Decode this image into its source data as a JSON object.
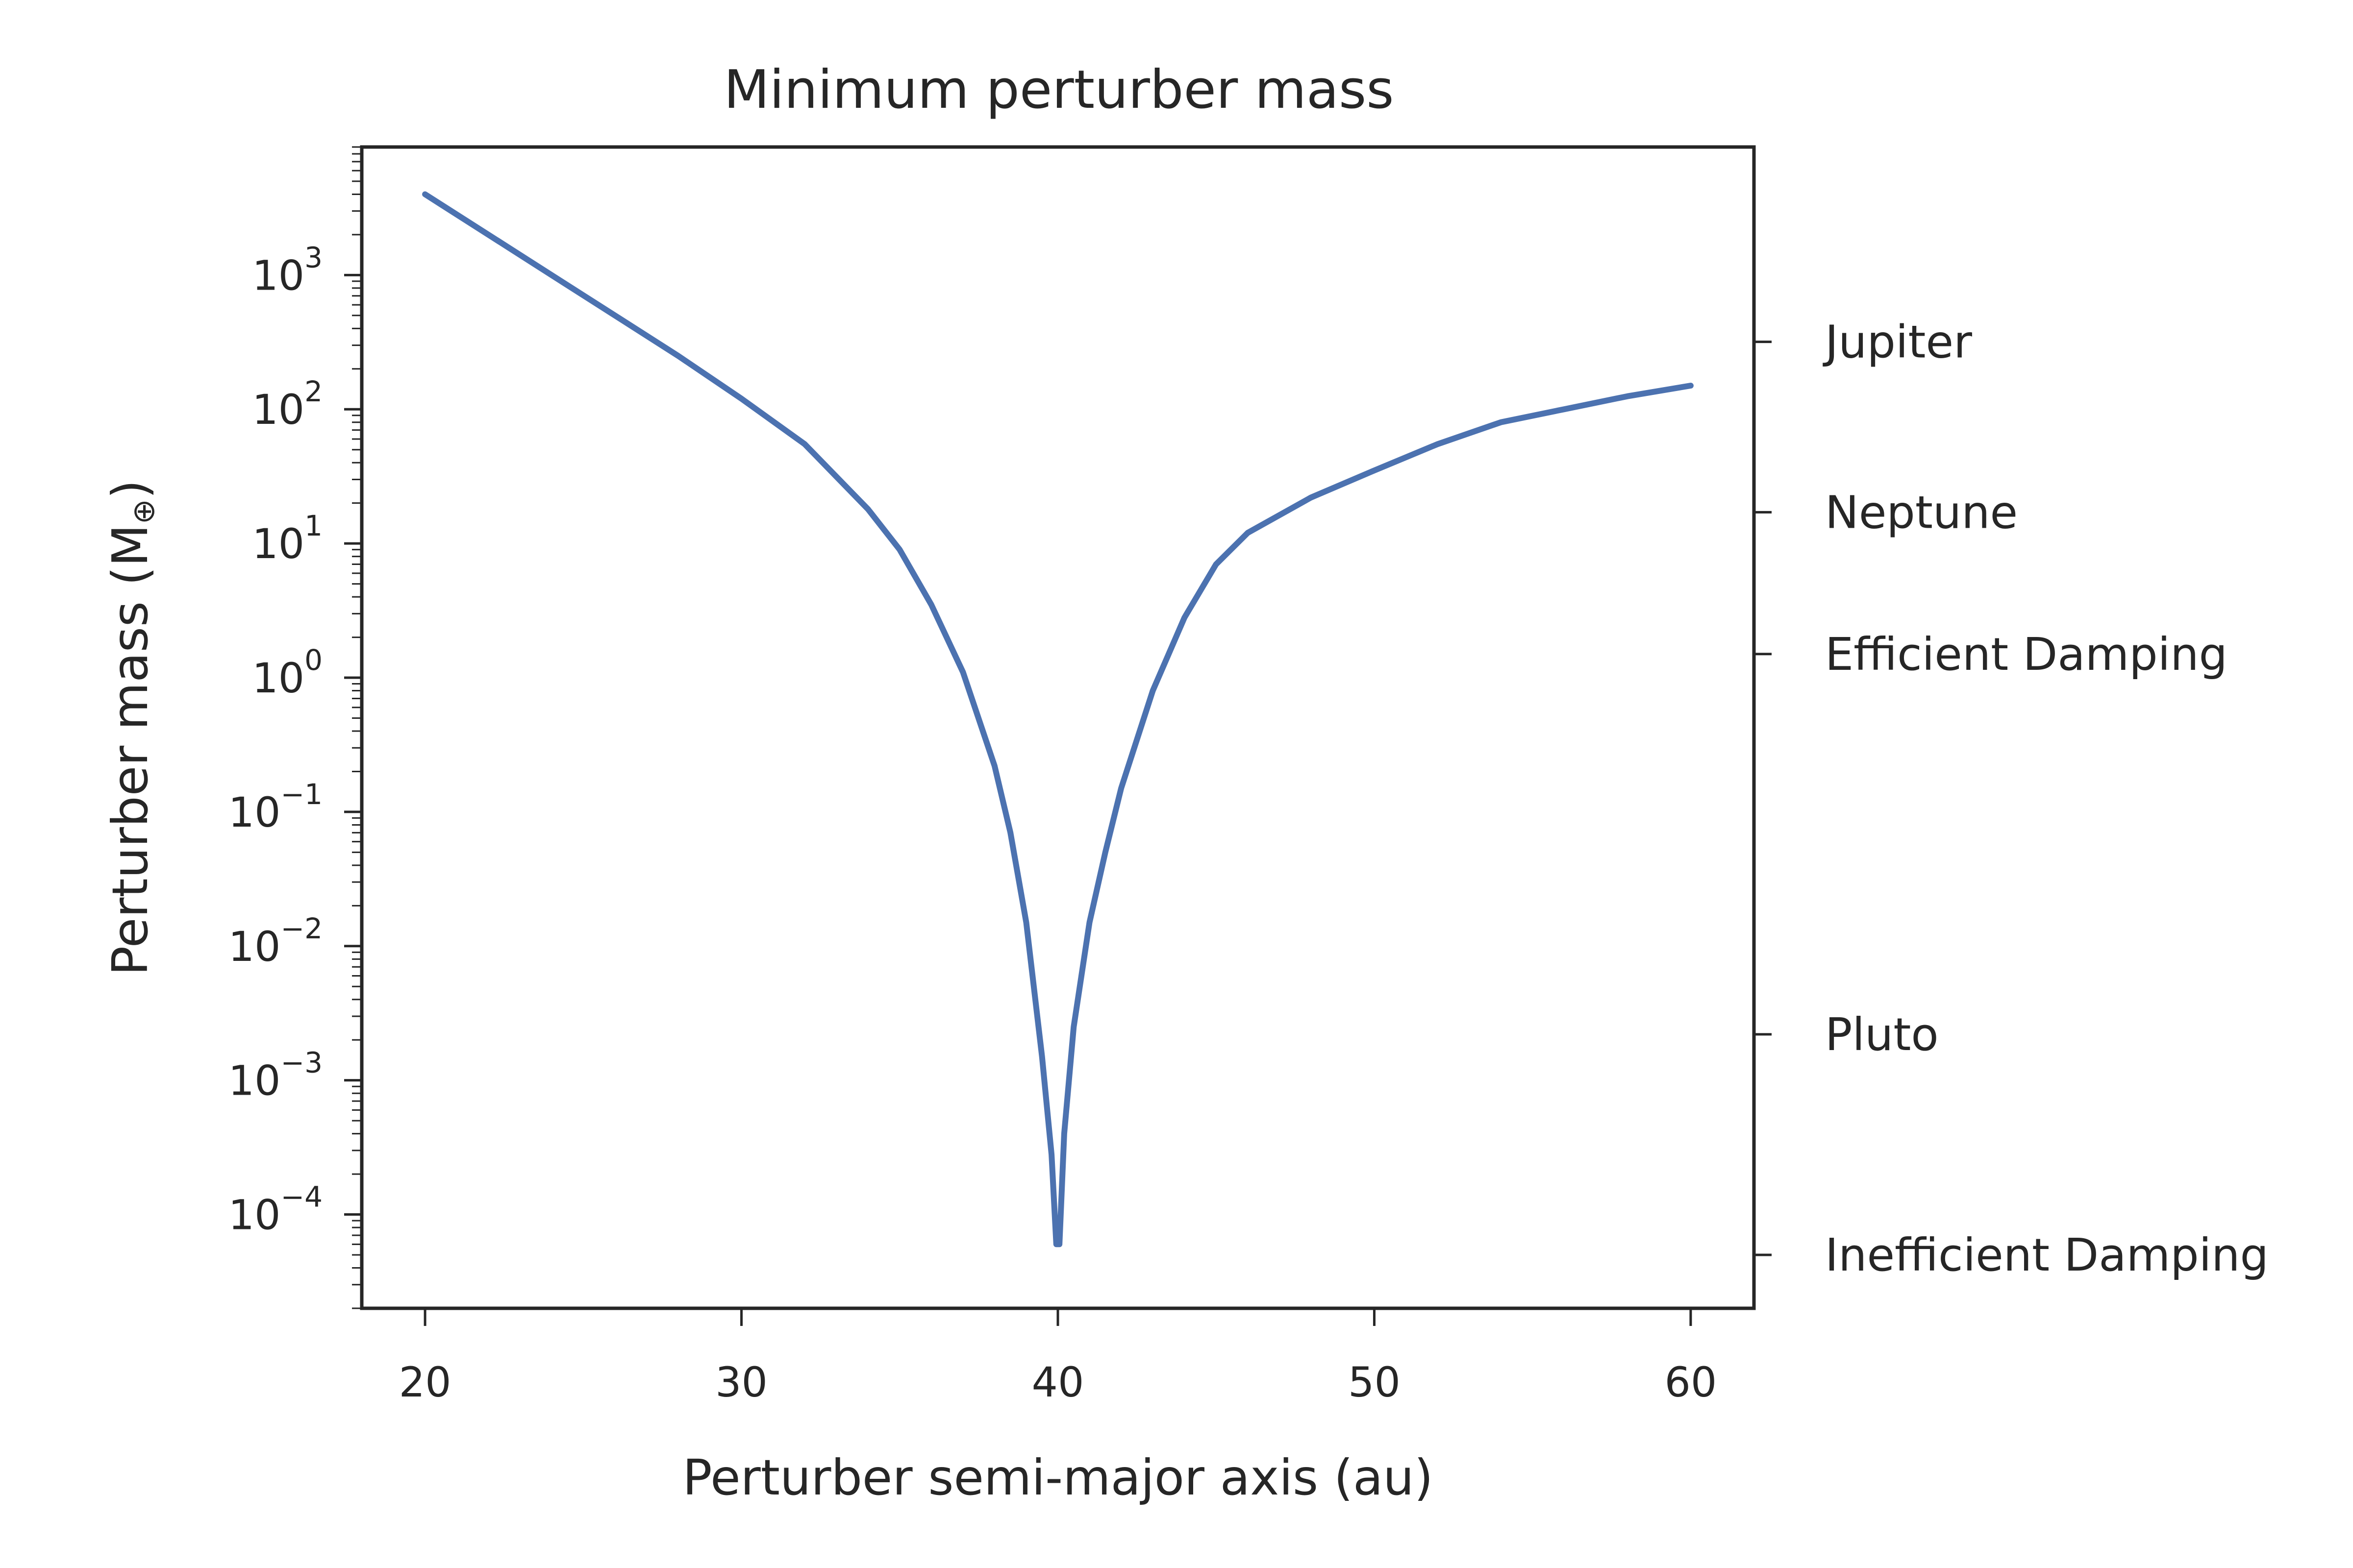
{
  "colors": {
    "series": "#4c72b0",
    "axis": "#262626"
  },
  "chart_data": {
    "type": "line",
    "title": "Minimum perturber mass",
    "xlabel": "Perturber semi-major axis (au)",
    "ylabel": "Perturber mass (M",
    "ylabel_symbol": "⊕",
    "ylabel_close": ")",
    "x_scale": "linear",
    "y_scale": "log",
    "xlim": [
      18,
      62
    ],
    "ylim": [
      2e-05,
      9000
    ],
    "x_ticks": [
      {
        "value": 20,
        "label": "20"
      },
      {
        "value": 30,
        "label": "30"
      },
      {
        "value": 40,
        "label": "40"
      },
      {
        "value": 50,
        "label": "50"
      },
      {
        "value": 60,
        "label": "60"
      }
    ],
    "y_ticks": [
      {
        "value": 0.0001,
        "base": "10",
        "exp": "−4"
      },
      {
        "value": 0.001,
        "base": "10",
        "exp": "−3"
      },
      {
        "value": 0.01,
        "base": "10",
        "exp": "−2"
      },
      {
        "value": 0.1,
        "base": "10",
        "exp": "−1"
      },
      {
        "value": 1,
        "base": "10",
        "exp": "0"
      },
      {
        "value": 10,
        "base": "10",
        "exp": "1"
      },
      {
        "value": 100,
        "base": "10",
        "exp": "2"
      },
      {
        "value": 1000,
        "base": "10",
        "exp": "3"
      }
    ],
    "right_ticks": [
      {
        "value": 318,
        "label": "Jupiter"
      },
      {
        "value": 17.1,
        "label": "Neptune"
      },
      {
        "value": 1.5,
        "label": "Efficient Damping"
      },
      {
        "value": 0.0022,
        "label": "Pluto"
      },
      {
        "value": 5e-05,
        "label": "Inefficient Damping"
      }
    ],
    "series": [
      {
        "x": [
          20,
          22,
          24,
          26,
          28,
          30,
          32,
          34,
          35,
          36,
          37,
          38,
          38.5,
          39,
          39.5,
          39.8,
          39.95,
          40.05,
          40.2,
          40.5,
          41,
          41.5,
          42,
          43,
          44,
          45,
          46,
          48,
          50,
          52,
          54,
          56,
          58,
          60
        ],
        "y": [
          4000,
          2000,
          1000,
          500,
          250,
          120,
          55,
          18,
          9,
          3.5,
          1.1,
          0.22,
          0.07,
          0.015,
          0.0015,
          0.00028,
          6e-05,
          6e-05,
          0.0004,
          0.0025,
          0.015,
          0.05,
          0.15,
          0.8,
          2.8,
          7,
          12,
          22,
          35,
          55,
          80,
          100,
          125,
          150
        ]
      }
    ]
  }
}
